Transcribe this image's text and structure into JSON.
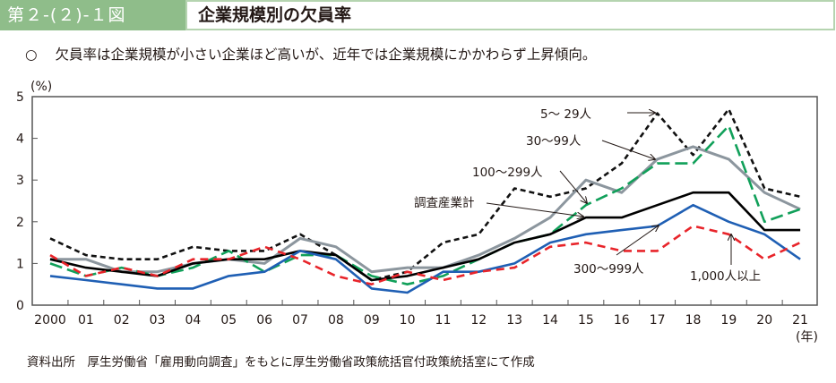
{
  "header": {
    "figure_label": "第２-(２)-１図",
    "title": "企業規模別の欠員率"
  },
  "summary": {
    "bullet": "○",
    "text": "欠員率は企業規模が小さい企業ほど高いが、近年では企業規模にかかわらず上昇傾向。"
  },
  "source": "資料出所　厚生労働省「雇用動向調査」をもとに厚生労働省政策統括官付政策統括室にて作成",
  "chart_data": {
    "type": "line",
    "title": "企業規模別の欠員率",
    "ylabel": "(%)",
    "xlabel": "(年)",
    "ylim": [
      0,
      5
    ],
    "yticks": [
      "0",
      "1",
      "2",
      "3",
      "4",
      "5"
    ],
    "categories": [
      "2000",
      "01",
      "02",
      "03",
      "04",
      "05",
      "06",
      "07",
      "08",
      "09",
      "10",
      "11",
      "12",
      "13",
      "14",
      "15",
      "16",
      "17",
      "18",
      "19",
      "20",
      "21"
    ],
    "grid": false,
    "series": [
      {
        "name": "5～ 29人",
        "color": "#111111",
        "style": "dashed-short",
        "values": [
          1.6,
          1.2,
          1.1,
          1.1,
          1.4,
          1.3,
          1.3,
          1.7,
          1.2,
          0.6,
          0.8,
          1.5,
          1.7,
          2.8,
          2.6,
          2.8,
          3.4,
          4.6,
          3.6,
          4.7,
          2.8,
          2.6
        ]
      },
      {
        "name": "30～99人",
        "color": "#8c969e",
        "style": "solid",
        "values": [
          1.1,
          1.1,
          0.8,
          0.8,
          1.0,
          1.1,
          1.0,
          1.6,
          1.4,
          0.8,
          0.9,
          0.9,
          1.2,
          1.6,
          2.1,
          3.0,
          2.7,
          3.5,
          3.8,
          3.5,
          2.7,
          2.3
        ]
      },
      {
        "name": "100～299人",
        "color": "#11a05a",
        "style": "dashed-long",
        "values": [
          1.0,
          0.7,
          0.9,
          0.7,
          0.9,
          1.3,
          0.8,
          1.2,
          1.2,
          0.7,
          0.5,
          0.7,
          1.1,
          1.5,
          1.7,
          2.4,
          2.8,
          3.4,
          3.4,
          4.3,
          2.0,
          2.3
        ]
      },
      {
        "name": "調査産業計",
        "color": "#000000",
        "style": "solid",
        "values": [
          1.1,
          0.9,
          0.8,
          0.7,
          1.0,
          1.1,
          1.1,
          1.3,
          1.2,
          0.6,
          0.7,
          0.9,
          1.1,
          1.5,
          1.7,
          2.1,
          2.1,
          2.4,
          2.7,
          2.7,
          1.8,
          1.8
        ]
      },
      {
        "name": "300～999人",
        "color": "#1f5fb4",
        "style": "solid",
        "values": [
          0.7,
          0.6,
          0.5,
          0.4,
          0.4,
          0.7,
          0.8,
          1.3,
          1.1,
          0.4,
          0.3,
          0.8,
          0.8,
          1.0,
          1.5,
          1.7,
          1.8,
          1.9,
          2.4,
          2.0,
          1.7,
          1.1
        ]
      },
      {
        "name": "1,000人以上",
        "color": "#e8242a",
        "style": "dashed",
        "values": [
          1.2,
          0.7,
          0.9,
          0.7,
          1.1,
          1.1,
          1.4,
          1.1,
          0.7,
          0.5,
          0.8,
          0.6,
          0.8,
          0.9,
          1.4,
          1.5,
          1.3,
          1.3,
          1.9,
          1.7,
          1.1,
          1.5
        ]
      }
    ],
    "annotations": [
      {
        "text": "5～ 29人",
        "series": "5～ 29人",
        "points_to": "17"
      },
      {
        "text": "30～99人",
        "series": "30～99人",
        "points_to": "17"
      },
      {
        "text": "100～299人",
        "series": "100～299人",
        "points_to": "15"
      },
      {
        "text": "調査産業計",
        "series": "調査産業計",
        "points_to": "15"
      },
      {
        "text": "300～999人",
        "series": "300～999人",
        "points_to": "17"
      },
      {
        "text": "1,000人以上",
        "series": "1,000人以上",
        "points_to": "19"
      }
    ]
  }
}
